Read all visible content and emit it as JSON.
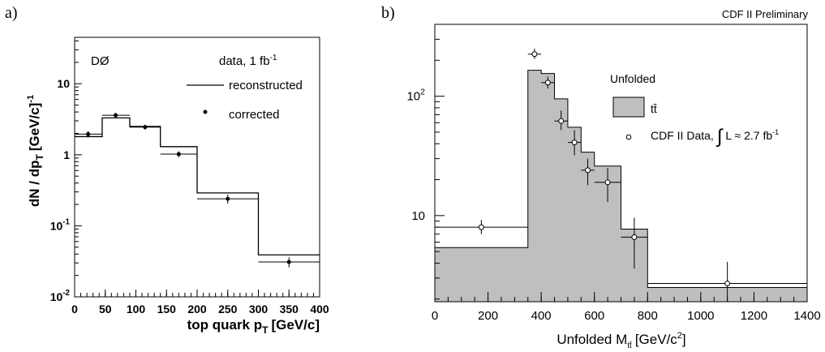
{
  "chart_data": [
    {
      "panel_label": "a)",
      "type": "histogram",
      "experiment_label": "DØ",
      "data_label_main": "data, 1 fb",
      "data_label_sup": "-1",
      "ylabel_main": "dN / dp",
      "ylabel_sub": "T",
      "ylabel_unit": "[GeV/c]",
      "ylabel_sup": "-1",
      "xlabel_main": "top quark p",
      "xlabel_sub": "T",
      "xlabel_unit": "[GeV/c]",
      "xlim": [
        0,
        400
      ],
      "ylim": [
        0.01,
        45
      ],
      "y_scale": "log",
      "x_ticks": [
        "0",
        "50",
        "100",
        "150",
        "200",
        "250",
        "300",
        "350",
        "400"
      ],
      "y_ticks": [
        {
          "value": 0.01,
          "base": "10",
          "exp": "-2"
        },
        {
          "value": 0.1,
          "base": "10",
          "exp": "-1"
        },
        {
          "value": 1,
          "base": "1",
          "exp": ""
        },
        {
          "value": 10,
          "base": "10",
          "exp": ""
        }
      ],
      "legend_position": "top-right",
      "bins": [
        0,
        45,
        90,
        140,
        200,
        300,
        400
      ],
      "series": [
        {
          "name": "reconstructed",
          "style": "histogram-line",
          "values": [
            1.8,
            3.3,
            2.5,
            1.3,
            0.29,
            0.039
          ]
        },
        {
          "name": "corrected",
          "style": "markers",
          "x": [
            22,
            67,
            115,
            170,
            250,
            350
          ],
          "values": [
            1.95,
            3.6,
            2.45,
            1.02,
            0.24,
            0.031
          ],
          "errors": [
            0.2,
            0.3,
            0.2,
            0.1,
            0.035,
            0.005
          ],
          "horizontal_bars": [
            [
              0,
              45
            ],
            [
              45,
              90
            ],
            [
              90,
              140
            ],
            [
              140,
              200
            ],
            [
              200,
              300
            ],
            [
              300,
              400
            ]
          ]
        }
      ]
    },
    {
      "panel_label": "b)",
      "type": "histogram",
      "header": "CDF II Preliminary",
      "legend_title": "Unfolded",
      "legend_fill_label": "tt̄",
      "legend_data_label_main": "CDF II Data,",
      "legend_data_label_int": "L ≈ 2.7 fb",
      "legend_data_label_sup": "-1",
      "xlabel_main": "Unfolded M",
      "xlabel_sub": "tt̄",
      "xlabel_unit": "[GeV/c",
      "xlabel_sup": "2",
      "xlabel_close": "]",
      "xlim": [
        0,
        1400
      ],
      "ylim": [
        1.9,
        400
      ],
      "y_scale": "log",
      "x_ticks": [
        "0",
        "200",
        "400",
        "600",
        "800",
        "1000",
        "1200",
        "1400"
      ],
      "y_ticks": [
        {
          "value": 10,
          "base": "10",
          "exp": ""
        },
        {
          "value": 100,
          "base": "10",
          "exp": "2"
        }
      ],
      "legend_position": "top-right",
      "bins": [
        0,
        350,
        400,
        450,
        500,
        550,
        600,
        700,
        800,
        1400
      ],
      "series": [
        {
          "name": "tt̄",
          "style": "filled-histogram",
          "values": [
            5.4,
            165,
            155,
            95,
            55,
            34,
            26,
            7.7,
            2.5
          ]
        },
        {
          "name": "CDF II Data",
          "style": "open-markers",
          "x": [
            175,
            375,
            425,
            475,
            525,
            575,
            650,
            750,
            1100
          ],
          "values": [
            8.0,
            225,
            130,
            62,
            41,
            24,
            19,
            6.6,
            2.7
          ],
          "err_low": [
            1.0,
            20,
            14,
            10,
            9,
            6,
            6,
            3.0,
            1.3
          ],
          "err_high": [
            1.2,
            25,
            16,
            14,
            11,
            6,
            6,
            3.0,
            1.4
          ],
          "horizontal_bars": [
            [
              0,
              350
            ],
            [
              350,
              400
            ],
            [
              400,
              450
            ],
            [
              450,
              500
            ],
            [
              500,
              550
            ],
            [
              550,
              600
            ],
            [
              600,
              700
            ],
            [
              700,
              800
            ],
            [
              800,
              1400
            ]
          ]
        }
      ]
    }
  ]
}
